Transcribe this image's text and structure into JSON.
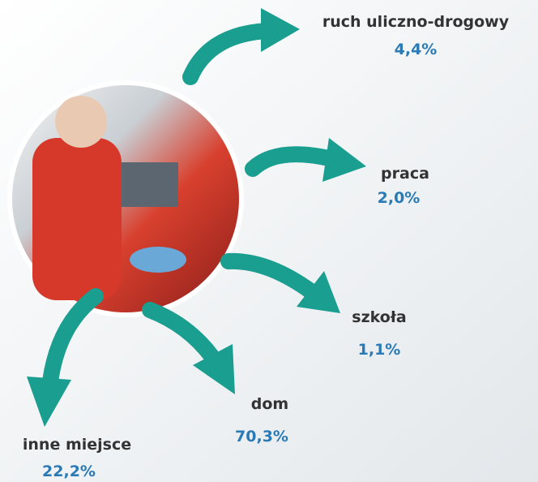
{
  "items": [
    {
      "label": "ruch uliczno-drogowy",
      "value": "4,4%"
    },
    {
      "label": "praca",
      "value": "2,0%"
    },
    {
      "label": "szkoła",
      "value": "1,1%"
    },
    {
      "label": "dom",
      "value": "70,3%"
    },
    {
      "label": "inne miejsce",
      "value": "22,2%"
    }
  ]
}
